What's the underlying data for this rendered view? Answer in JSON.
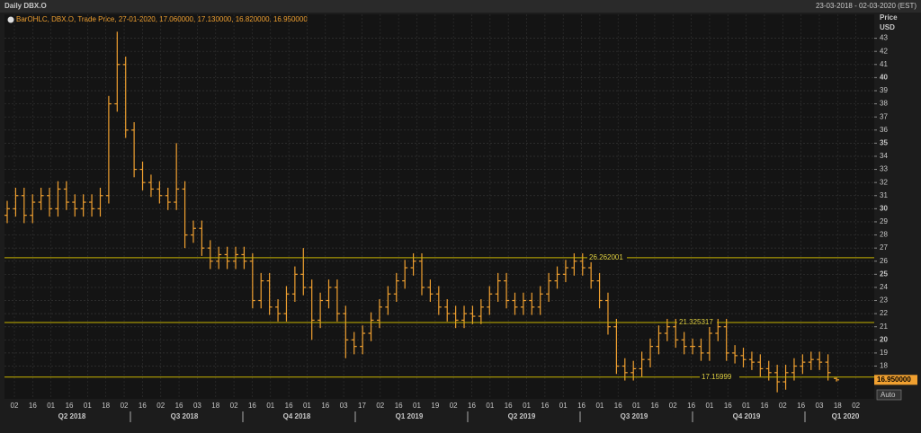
{
  "header": {
    "title": "Daily DBX.O",
    "range": "23-03-2018 - 02-03-2020 (EST)"
  },
  "chart_data": {
    "type": "ohlc",
    "legend": "BarOHLC, DBX.O, Trade Price, 27-01-2020, 17.060000, 17.130000, 16.820000, 16.950000",
    "y_label": "Price",
    "y_unit": "USD",
    "color": "#f0a030",
    "open": [
      29.5,
      30,
      31,
      29.5,
      30.5,
      31,
      30,
      31.5,
      30.5,
      30,
      30.5,
      30,
      31,
      38,
      41,
      36,
      33,
      32,
      31.5,
      31,
      30.5,
      31.5,
      28,
      28.5,
      27,
      26,
      26.5,
      26,
      26.5,
      26,
      23,
      24.5,
      22.5,
      22,
      23.5,
      25,
      24,
      21.5,
      23,
      24,
      22,
      20,
      19.5,
      20.5,
      21.5,
      22.5,
      23.5,
      24.5,
      25.5,
      26,
      24,
      23.5,
      22.5,
      22,
      21.5,
      22,
      21.8,
      22.5,
      23.5,
      24.5,
      23,
      22.5,
      23,
      22.5,
      23.5,
      24.5,
      25,
      25.5,
      26,
      25.5,
      24.5,
      23,
      21,
      18,
      17.5,
      17.8,
      18.5,
      19.5,
      20.5,
      21,
      20,
      19.5,
      19.5,
      19,
      20.5,
      21,
      19,
      18.8,
      18.5,
      18.3,
      17.8,
      17.5,
      16.8,
      17.5,
      18,
      18.3,
      18.5,
      18.3,
      17.06
    ],
    "high": [
      30.6,
      31.6,
      31.6,
      31.1,
      31.6,
      31.6,
      32.1,
      32.1,
      31.1,
      31.1,
      31.1,
      31.6,
      38.6,
      43.5,
      41.6,
      36.6,
      33.6,
      32.6,
      32.1,
      31.6,
      35,
      32.1,
      29.1,
      29.1,
      27.6,
      27.1,
      27.1,
      27.1,
      27.1,
      26.6,
      25.1,
      25.1,
      23.1,
      24.1,
      25.6,
      27,
      24.6,
      23.6,
      24.6,
      24.6,
      22.6,
      20.6,
      21.1,
      22.1,
      23.1,
      24.1,
      25.1,
      26.1,
      26.6,
      26.6,
      24.6,
      24.1,
      23.1,
      22.6,
      22.6,
      22.6,
      23.1,
      24.1,
      25.1,
      25.1,
      23.6,
      23.6,
      23.6,
      24.1,
      25.1,
      25.6,
      26.1,
      26.6,
      26.6,
      26.1,
      25.1,
      23.6,
      21.6,
      18.6,
      18.4,
      19.1,
      20.1,
      21.1,
      21.6,
      21.6,
      20.6,
      20.1,
      20.1,
      21.1,
      21.6,
      21.6,
      19.6,
      19.4,
      19.1,
      18.9,
      18.4,
      18.1,
      18.1,
      18.6,
      18.9,
      19.1,
      19.1,
      18.9,
      17.13
    ],
    "low": [
      28.9,
      29.4,
      28.9,
      28.9,
      29.9,
      29.4,
      29.4,
      29.9,
      29.4,
      29.4,
      29.4,
      29.4,
      30.4,
      37.4,
      35.4,
      32.4,
      31.4,
      30.9,
      30.4,
      29.9,
      29.9,
      27,
      27.4,
      26.4,
      25.4,
      25.4,
      25.4,
      25.4,
      25.4,
      22.4,
      22.4,
      21.9,
      21.4,
      21.4,
      22.9,
      23.4,
      20,
      20.9,
      22.4,
      21.4,
      18.6,
      18.9,
      18.9,
      19.9,
      20.9,
      21.9,
      22.9,
      23.9,
      24.9,
      23.4,
      22.9,
      21.9,
      21.4,
      20.9,
      20.9,
      21.2,
      21.2,
      21.9,
      22.9,
      22.4,
      21.9,
      21.9,
      21.9,
      21.9,
      22.9,
      23.9,
      24.4,
      24.9,
      24.9,
      23.9,
      22.4,
      20.4,
      17.4,
      16.9,
      16.9,
      17.2,
      17.9,
      18.9,
      19.9,
      19.4,
      18.9,
      18.9,
      18.4,
      18.4,
      19.9,
      18.4,
      18.2,
      17.9,
      17.7,
      17.2,
      16.9,
      16,
      16.2,
      16.9,
      17.4,
      17.7,
      17.7,
      16.9,
      16.82
    ],
    "close": [
      30,
      31,
      29.5,
      30.5,
      31,
      30,
      31.5,
      30.5,
      30,
      30.5,
      30,
      31,
      38,
      41,
      36,
      33,
      32,
      31.5,
      31,
      30.5,
      31.5,
      28,
      28.5,
      27,
      26,
      26.5,
      26,
      26.5,
      26,
      23,
      24.5,
      22.5,
      22,
      23.5,
      25,
      24,
      21.5,
      23,
      24,
      22,
      20,
      19.5,
      20.5,
      21.5,
      22.5,
      23.5,
      24.5,
      25.5,
      26,
      24,
      23.5,
      22.5,
      22,
      21.5,
      22,
      21.8,
      22.5,
      23.5,
      24.5,
      23,
      22.5,
      23,
      22.5,
      23.5,
      24.5,
      25,
      25.5,
      26,
      25.5,
      24.5,
      23,
      21,
      18,
      17.5,
      17.8,
      18.5,
      19.5,
      20.5,
      21,
      20,
      19.5,
      19.5,
      19,
      20.5,
      21,
      19,
      18.8,
      18.5,
      18.3,
      17.8,
      17.5,
      16.8,
      17.5,
      18,
      18.3,
      18.5,
      18.3,
      17.5,
      16.95
    ],
    "hlines": [
      26.262001,
      21.325317,
      17.15999
    ],
    "hline_color": "#c8b400",
    "last_price": {
      "value": 16.95,
      "label": "16.950000"
    },
    "ylim": [
      15.5,
      44
    ],
    "yticks": [
      18,
      19,
      20,
      21,
      22,
      23,
      24,
      25,
      26,
      27,
      28,
      29,
      30,
      31,
      32,
      33,
      34,
      35,
      36,
      37,
      38,
      39,
      40,
      41,
      42,
      43
    ],
    "grid": true,
    "xtick_labels": [
      "02",
      "16",
      "01",
      "16",
      "01",
      "18",
      "02",
      "16",
      "02",
      "16",
      "03",
      "18",
      "02",
      "16",
      "01",
      "16",
      "01",
      "16",
      "03",
      "17",
      "02",
      "16",
      "01",
      "19",
      "02",
      "16",
      "01",
      "16",
      "01",
      "16",
      "01",
      "16",
      "01",
      "16",
      "01",
      "16",
      "02",
      "16",
      "01",
      "16",
      "01",
      "16",
      "02",
      "16",
      "03",
      "18",
      "02"
    ],
    "quarters": [
      "Q2 2018",
      "Q3 2018",
      "Q4 2018",
      "Q1 2019",
      "Q2 2019",
      "Q3 2019",
      "Q4 2019",
      "Q1 2020"
    ],
    "auto_button": "Auto"
  }
}
